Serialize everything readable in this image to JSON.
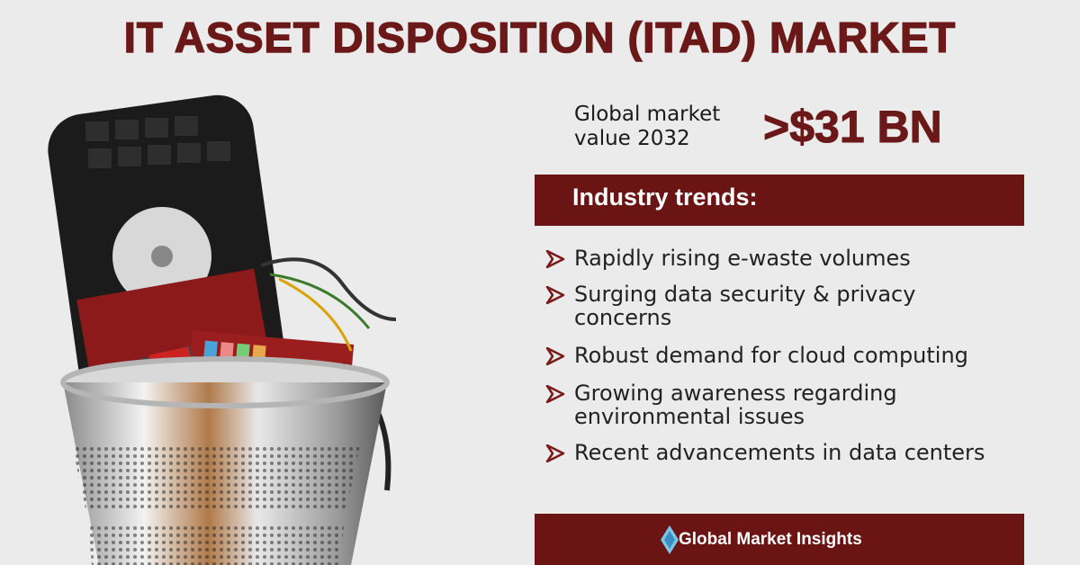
{
  "header": {
    "title": "IT ASSET DISPOSITION (ITAD) MARKET"
  },
  "market": {
    "label_lines": [
      "Global market",
      "value 2032"
    ],
    "value": ">$31 BN"
  },
  "trends": {
    "heading": "Industry trends:",
    "items": [
      [
        "Rapidly rising e-waste volumes"
      ],
      [
        "Surging data security & privacy",
        "concerns"
      ],
      [
        "Robust demand for cloud computing"
      ],
      [
        "Growing awareness regarding",
        "environmental issues"
      ],
      [
        "Recent advancements in data centers"
      ]
    ]
  },
  "footer": {
    "brand": "Global Market Insights"
  }
}
